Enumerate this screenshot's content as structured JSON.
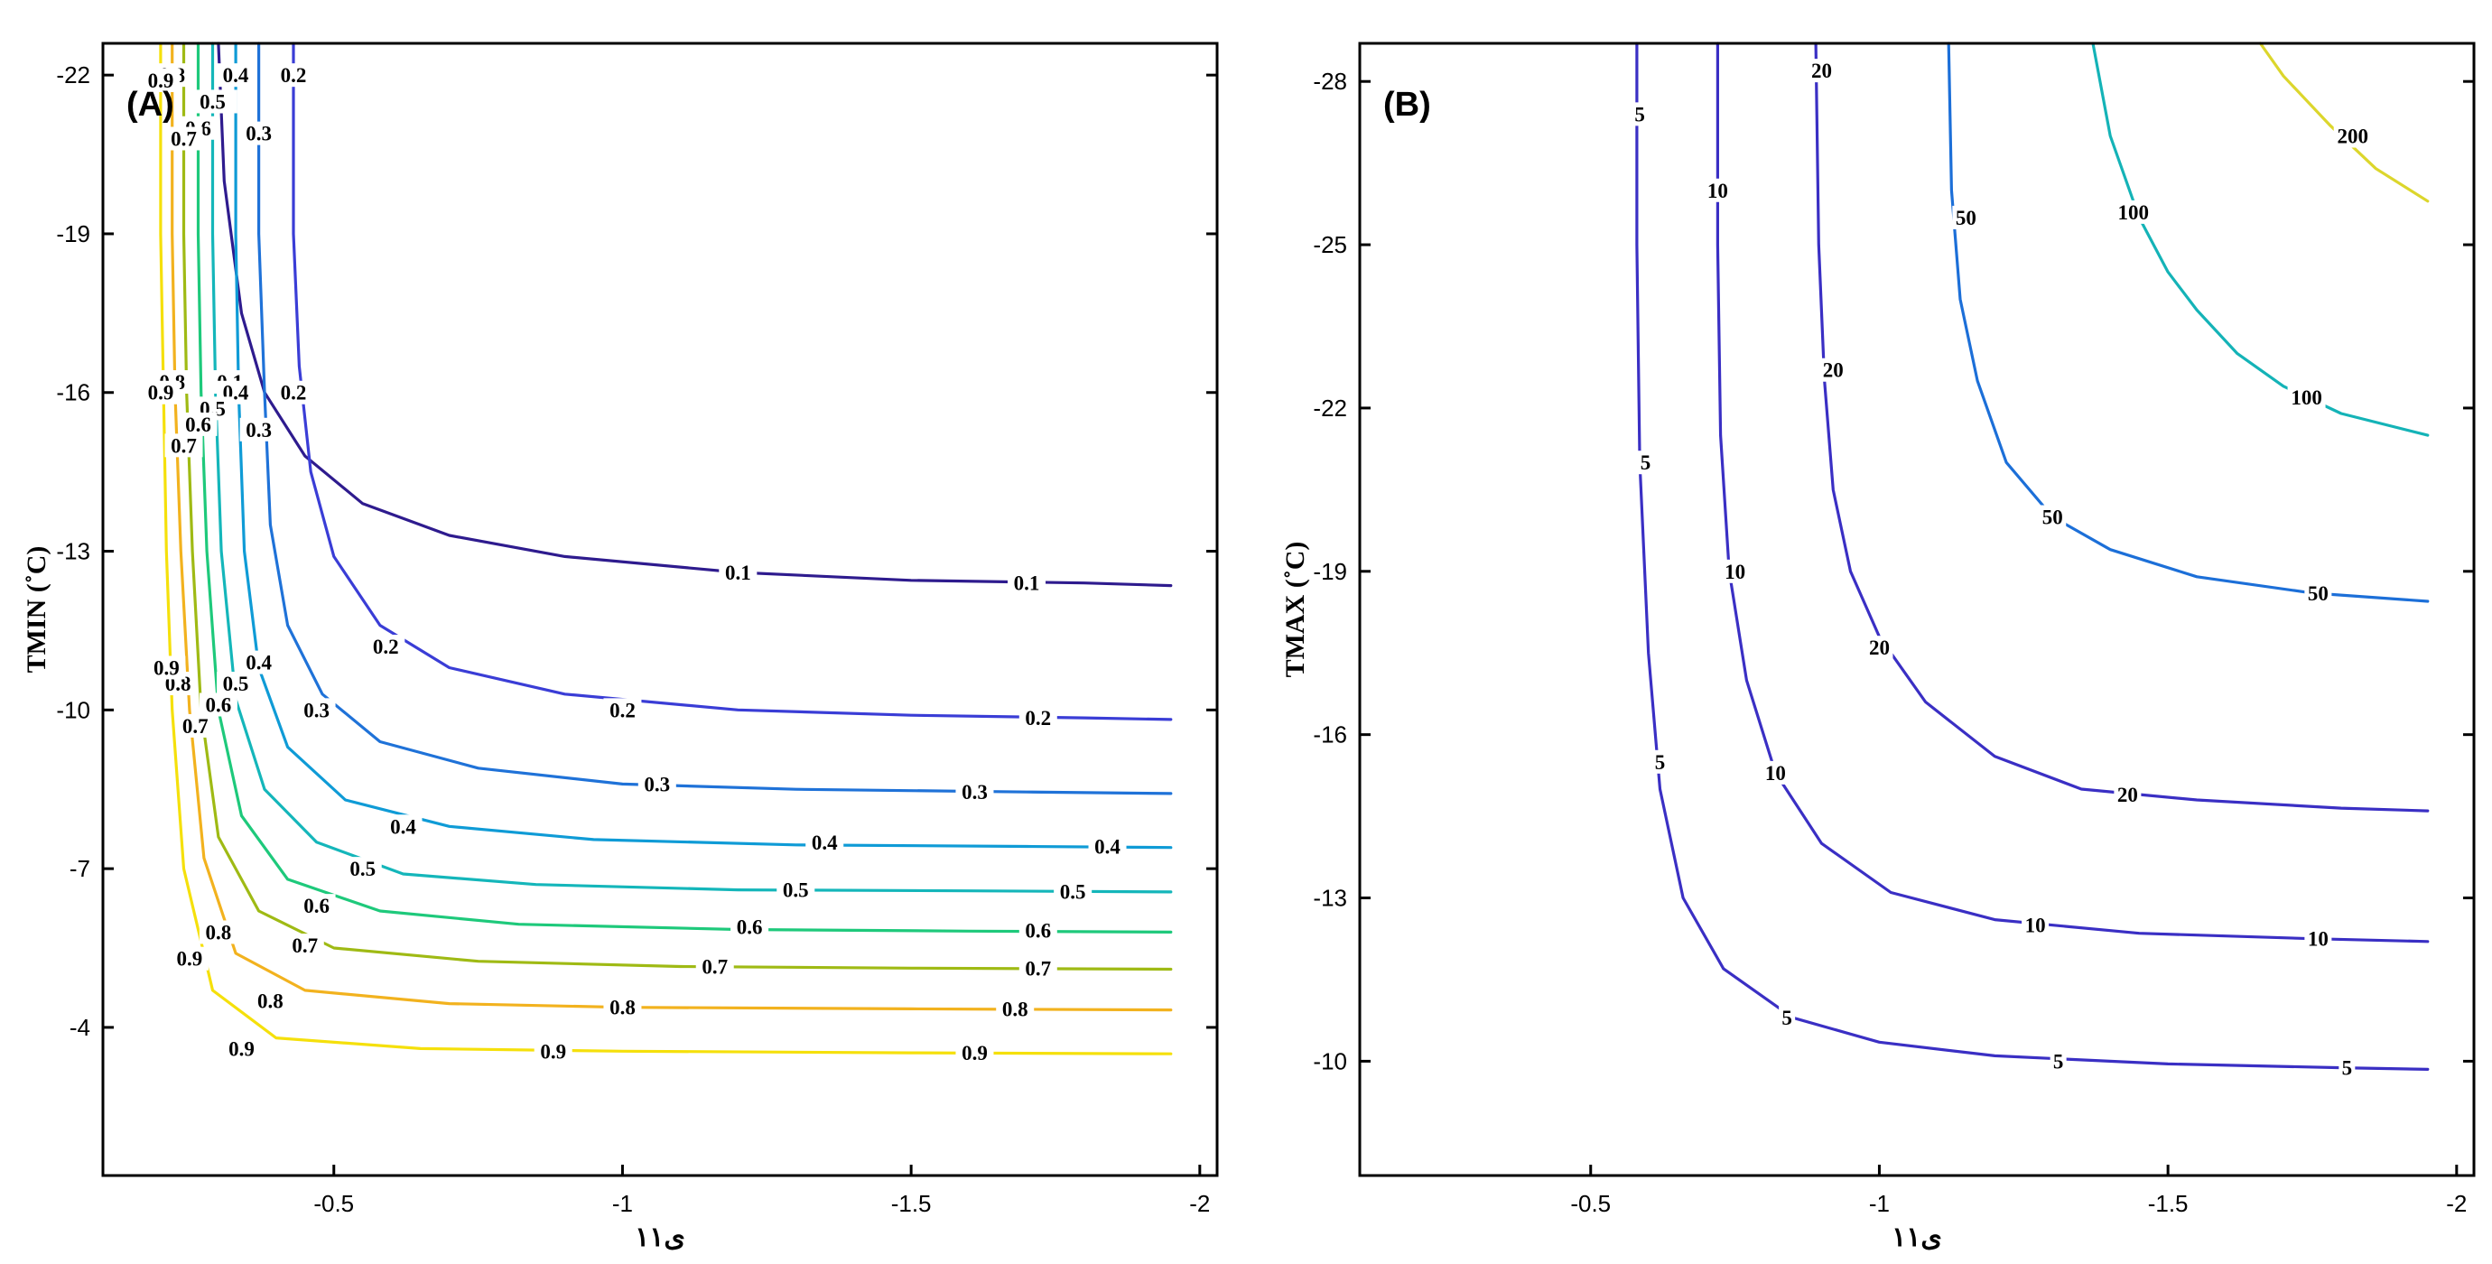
{
  "chart_data": [
    {
      "type": "contour",
      "panel_label": "(A)",
      "xlabel": "ى١١",
      "ylabel": "TMIN (˚C)",
      "xlim": [
        -0.1,
        -2.03
      ],
      "ylim": [
        -1.2,
        -22.6
      ],
      "xticks": [
        -0.5,
        -1,
        -1.5,
        -2
      ],
      "xtick_labels": [
        "-0.5",
        "-1",
        "-1.5",
        "-2"
      ],
      "yticks": [
        -4,
        -7,
        -10,
        -13,
        -16,
        -19,
        -22
      ],
      "ytick_labels": [
        "-4",
        "-7",
        "-10",
        "-13",
        "-16",
        "-19",
        "-22"
      ],
      "series": [
        {
          "name": "0.1",
          "color": "#2e1b8e",
          "x": [
            -0.3,
            -0.31,
            -0.34,
            -0.38,
            -0.45,
            -0.55,
            -0.7,
            -0.9,
            -1.2,
            -1.5,
            -1.8,
            -1.95
          ],
          "y": [
            -22.6,
            -20,
            -17.5,
            -16,
            -14.8,
            -13.9,
            -13.3,
            -12.9,
            -12.6,
            -12.45,
            -12.4,
            -12.35
          ],
          "labels_at": [
            [
              -1.2,
              -12.6
            ],
            [
              -1.7,
              -12.4
            ],
            [
              -0.32,
              -16.2
            ],
            [
              -0.3,
              -21.5
            ]
          ]
        },
        {
          "name": "0.2",
          "color": "#3a3dd6",
          "x": [
            -0.43,
            -0.43,
            -0.44,
            -0.46,
            -0.5,
            -0.58,
            -0.7,
            -0.9,
            -1.2,
            -1.5,
            -1.8,
            -1.95
          ],
          "y": [
            -22.6,
            -19,
            -16.5,
            -14.5,
            -12.9,
            -11.6,
            -10.8,
            -10.3,
            -10.0,
            -9.9,
            -9.85,
            -9.82
          ],
          "labels_at": [
            [
              -1.0,
              -10.0
            ],
            [
              -1.72,
              -9.85
            ],
            [
              -0.59,
              -11.2
            ],
            [
              -0.43,
              -16.0
            ],
            [
              -0.43,
              -22.0
            ]
          ]
        },
        {
          "name": "0.3",
          "color": "#1f72d8",
          "x": [
            -0.37,
            -0.37,
            -0.38,
            -0.39,
            -0.42,
            -0.48,
            -0.58,
            -0.75,
            -1.0,
            -1.3,
            -1.7,
            -1.95
          ],
          "y": [
            -22.6,
            -19,
            -16,
            -13.5,
            -11.6,
            -10.3,
            -9.4,
            -8.9,
            -8.6,
            -8.5,
            -8.45,
            -8.42
          ],
          "labels_at": [
            [
              -1.06,
              -8.6
            ],
            [
              -1.61,
              -8.45
            ],
            [
              -0.47,
              -10.0
            ],
            [
              -0.37,
              -15.3
            ],
            [
              -0.37,
              -20.9
            ]
          ]
        },
        {
          "name": "0.4",
          "color": "#0f9bd6",
          "x": [
            -0.33,
            -0.33,
            -0.335,
            -0.345,
            -0.37,
            -0.42,
            -0.52,
            -0.7,
            -0.95,
            -1.3,
            -1.7,
            -1.95
          ],
          "y": [
            -22.6,
            -19,
            -16,
            -13,
            -10.8,
            -9.3,
            -8.3,
            -7.8,
            -7.55,
            -7.45,
            -7.42,
            -7.4
          ],
          "labels_at": [
            [
              -0.62,
              -7.8
            ],
            [
              -1.35,
              -7.5
            ],
            [
              -1.84,
              -7.42
            ],
            [
              -0.37,
              -10.9
            ],
            [
              -0.33,
              -16.0
            ],
            [
              -0.33,
              -22.0
            ]
          ]
        },
        {
          "name": "0.5",
          "color": "#14b6ba",
          "x": [
            -0.29,
            -0.29,
            -0.295,
            -0.305,
            -0.33,
            -0.38,
            -0.47,
            -0.62,
            -0.85,
            -1.2,
            -1.6,
            -1.95
          ],
          "y": [
            -22.6,
            -19,
            -16,
            -13,
            -10.2,
            -8.5,
            -7.5,
            -6.9,
            -6.7,
            -6.6,
            -6.58,
            -6.56
          ],
          "labels_at": [
            [
              -0.55,
              -7.0
            ],
            [
              -1.3,
              -6.6
            ],
            [
              -1.78,
              -6.57
            ],
            [
              -0.33,
              -10.5
            ],
            [
              -0.29,
              -15.7
            ],
            [
              -0.29,
              -21.5
            ]
          ]
        },
        {
          "name": "0.6",
          "color": "#1ec97b",
          "x": [
            -0.265,
            -0.265,
            -0.27,
            -0.28,
            -0.3,
            -0.34,
            -0.42,
            -0.58,
            -0.82,
            -1.2,
            -1.6,
            -1.95
          ],
          "y": [
            -22.6,
            -19,
            -16,
            -13,
            -10.0,
            -8.0,
            -6.8,
            -6.2,
            -5.95,
            -5.85,
            -5.82,
            -5.8
          ],
          "labels_at": [
            [
              -0.47,
              -6.3
            ],
            [
              -1.22,
              -5.9
            ],
            [
              -1.72,
              -5.83
            ],
            [
              -0.3,
              -10.1
            ],
            [
              -0.265,
              -15.4
            ],
            [
              -0.265,
              -21.0
            ]
          ]
        },
        {
          "name": "0.7",
          "color": "#9fba14",
          "x": [
            -0.24,
            -0.24,
            -0.245,
            -0.255,
            -0.27,
            -0.3,
            -0.37,
            -0.5,
            -0.75,
            -1.1,
            -1.5,
            -1.95
          ],
          "y": [
            -22.6,
            -19,
            -16,
            -13,
            -10.0,
            -7.6,
            -6.2,
            -5.5,
            -5.25,
            -5.15,
            -5.12,
            -5.1
          ],
          "labels_at": [
            [
              -0.45,
              -5.55
            ],
            [
              -1.16,
              -5.15
            ],
            [
              -1.72,
              -5.12
            ],
            [
              -0.26,
              -9.7
            ],
            [
              -0.24,
              -15.0
            ],
            [
              -0.24,
              -20.8
            ]
          ]
        },
        {
          "name": "0.8",
          "color": "#f2b21e",
          "x": [
            -0.22,
            -0.22,
            -0.225,
            -0.235,
            -0.25,
            -0.275,
            -0.33,
            -0.45,
            -0.7,
            -1.0,
            -1.5,
            -1.95
          ],
          "y": [
            -22.6,
            -19,
            -16,
            -13,
            -10.0,
            -7.2,
            -5.4,
            -4.7,
            -4.45,
            -4.38,
            -4.35,
            -4.33
          ],
          "labels_at": [
            [
              -0.39,
              -4.5
            ],
            [
              -1.0,
              -4.38
            ],
            [
              -1.68,
              -4.35
            ],
            [
              -0.3,
              -5.8
            ],
            [
              -0.23,
              -10.5
            ],
            [
              -0.22,
              -16.2
            ],
            [
              -0.22,
              -22.0
            ]
          ]
        },
        {
          "name": "0.9",
          "color": "#f5e00b",
          "x": [
            -0.2,
            -0.2,
            -0.205,
            -0.21,
            -0.22,
            -0.24,
            -0.29,
            -0.4,
            -0.65,
            -1.0,
            -1.5,
            -1.95
          ],
          "y": [
            -22.6,
            -19,
            -16,
            -13,
            -10.0,
            -7.0,
            -4.7,
            -3.8,
            -3.6,
            -3.55,
            -3.52,
            -3.5
          ],
          "labels_at": [
            [
              -0.34,
              -3.6
            ],
            [
              -0.88,
              -3.55
            ],
            [
              -1.61,
              -3.52
            ],
            [
              -0.25,
              -5.3
            ],
            [
              -0.21,
              -10.8
            ],
            [
              -0.2,
              -16.0
            ],
            [
              -0.2,
              -21.9
            ]
          ]
        }
      ]
    },
    {
      "type": "contour",
      "panel_label": "(B)",
      "xlabel": "ى١١",
      "ylabel": "TMAX (˚C)",
      "xlim": [
        -0.1,
        -2.03
      ],
      "ylim": [
        -7.9,
        -28.7
      ],
      "xticks": [
        -0.5,
        -1,
        -1.5,
        -2
      ],
      "xtick_labels": [
        "-0.5",
        "-1",
        "-1.5",
        "-2"
      ],
      "yticks": [
        -10,
        -13,
        -16,
        -19,
        -22,
        -25,
        -28
      ],
      "ytick_labels": [
        "-10",
        "-13",
        "-16",
        "-19",
        "-22",
        "-25",
        "-28"
      ],
      "series": [
        {
          "name": "5",
          "color": "#3a2fc4",
          "x": [
            -0.58,
            -0.58,
            -0.585,
            -0.6,
            -0.62,
            -0.66,
            -0.73,
            -0.85,
            -1.0,
            -1.2,
            -1.5,
            -1.8,
            -1.95
          ],
          "y": [
            -28.7,
            -25,
            -21,
            -17.5,
            -15.0,
            -13.0,
            -11.7,
            -10.8,
            -10.35,
            -10.1,
            -9.95,
            -9.88,
            -9.85
          ],
          "labels_at": [
            [
              -0.84,
              -10.8
            ],
            [
              -1.31,
              -10.0
            ],
            [
              -1.81,
              -9.88
            ],
            [
              -0.62,
              -15.5
            ],
            [
              -0.595,
              -21.0
            ],
            [
              -0.585,
              -27.4
            ]
          ]
        },
        {
          "name": "10",
          "color": "#3a2fc4",
          "x": [
            -0.72,
            -0.72,
            -0.725,
            -0.74,
            -0.77,
            -0.82,
            -0.9,
            -1.02,
            -1.2,
            -1.45,
            -1.75,
            -1.95
          ],
          "y": [
            -28.7,
            -25,
            -21.5,
            -19,
            -17.0,
            -15.3,
            -14.0,
            -13.1,
            -12.6,
            -12.35,
            -12.25,
            -12.2
          ],
          "labels_at": [
            [
              -0.82,
              -15.3
            ],
            [
              -1.27,
              -12.5
            ],
            [
              -1.76,
              -12.25
            ],
            [
              -0.75,
              -19.0
            ],
            [
              -0.72,
              -26.0
            ]
          ]
        },
        {
          "name": "20",
          "color": "#3a2fc4",
          "x": [
            -0.89,
            -0.895,
            -0.905,
            -0.92,
            -0.95,
            -1.0,
            -1.08,
            -1.2,
            -1.35,
            -1.55,
            -1.8,
            -1.95
          ],
          "y": [
            -28.7,
            -25,
            -22.5,
            -20.5,
            -19.0,
            -17.8,
            -16.6,
            -15.6,
            -15.0,
            -14.8,
            -14.65,
            -14.6
          ],
          "labels_at": [
            [
              -1.0,
              -17.6
            ],
            [
              -1.43,
              -14.9
            ],
            [
              -0.92,
              -22.7
            ],
            [
              -0.9,
              -28.2
            ]
          ]
        },
        {
          "name": "50",
          "color": "#1c6fd8",
          "x": [
            -1.12,
            -1.125,
            -1.14,
            -1.17,
            -1.22,
            -1.3,
            -1.4,
            -1.55,
            -1.75,
            -1.95
          ],
          "y": [
            -28.7,
            -26,
            -24.0,
            -22.5,
            -21.0,
            -20.0,
            -19.4,
            -18.9,
            -18.6,
            -18.45
          ],
          "labels_at": [
            [
              -1.3,
              -20.0
            ],
            [
              -1.76,
              -18.6
            ],
            [
              -1.15,
              -25.5
            ]
          ]
        },
        {
          "name": "100",
          "color": "#14b3b7",
          "x": [
            -1.37,
            -1.4,
            -1.45,
            -1.5,
            -1.55,
            -1.62,
            -1.7,
            -1.8,
            -1.95
          ],
          "y": [
            -28.7,
            -27.0,
            -25.5,
            -24.5,
            -23.8,
            -23.0,
            -22.4,
            -21.9,
            -21.5
          ],
          "labels_at": [
            [
              -1.74,
              -22.2
            ],
            [
              -1.44,
              -25.6
            ]
          ]
        },
        {
          "name": "200",
          "color": "#dcd62c",
          "x": [
            -1.66,
            -1.7,
            -1.78,
            -1.86,
            -1.95
          ],
          "y": [
            -28.7,
            -28.1,
            -27.2,
            -26.4,
            -25.8
          ],
          "labels_at": [
            [
              -1.82,
              -27.0
            ]
          ]
        }
      ]
    }
  ]
}
